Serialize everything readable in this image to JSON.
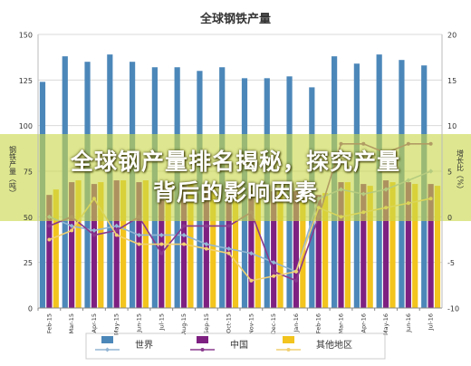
{
  "colors": {
    "world_bar": "#4c87b9",
    "china_bar": "#7e2082",
    "other_bar": "#f2c41d",
    "world_line": "#93b6d4",
    "china_line": "#8a3a8e",
    "other_line": "#f1d072",
    "overlay": "#c9d94a"
  },
  "overlay_banner": {
    "line1": "全球钢产量排名揭秘，探究产量",
    "line2": "背后的影响因素"
  },
  "chart_data": {
    "type": "bar",
    "title": "全球钢铁产量",
    "ylabel_left": "钢铁产量（吨）",
    "ylabel_right": "增长比（%）",
    "ylim_left": [
      0,
      150
    ],
    "ylim_right": [
      -10,
      20
    ],
    "left_ticks": [
      0,
      25,
      50,
      75,
      100,
      125,
      150
    ],
    "right_ticks": [
      -10,
      -5,
      0,
      5,
      10,
      15,
      20
    ],
    "categories": [
      "Feb-15",
      "Mar-15",
      "Apr-15",
      "May-15",
      "Jun-15",
      "Jul-15",
      "Aug-15",
      "Sep-15",
      "Oct-15",
      "Nov-15",
      "Dec-15",
      "Jan-16",
      "Feb-16",
      "Mar-16",
      "Apr-16",
      "May-16",
      "Jun-16",
      "Jul-16"
    ],
    "bar_series": [
      {
        "name": "世界",
        "values": [
          124,
          138,
          135,
          139,
          135,
          132,
          132,
          130,
          132,
          126,
          126,
          127,
          121,
          138,
          134,
          139,
          136,
          133
        ]
      },
      {
        "name": "中国",
        "values": [
          62,
          69,
          68,
          70,
          69,
          67,
          67,
          66,
          67,
          64,
          64,
          64,
          62,
          69,
          68,
          70,
          69,
          68
        ]
      },
      {
        "name": "其他地区",
        "values": [
          65,
          70,
          69,
          70,
          70,
          68,
          68,
          67,
          68,
          65,
          65,
          66,
          63,
          69,
          67,
          69,
          68,
          67
        ]
      }
    ],
    "line_series": [
      {
        "name": "世界",
        "values": [
          0,
          -1,
          -1.5,
          -1,
          -2,
          -2,
          -2,
          -3,
          -3.5,
          -4,
          -5,
          -6,
          2,
          3,
          2.5,
          3,
          4,
          5
        ]
      },
      {
        "name": "中国",
        "values": [
          -1,
          0,
          -2,
          -1.5,
          0,
          -4,
          -1,
          -1,
          -1,
          0.5,
          -6,
          -7,
          0,
          8,
          8,
          7,
          8,
          8
        ]
      },
      {
        "name": "其他地区",
        "values": [
          -2.5,
          -1.5,
          2,
          -2,
          -3,
          -3,
          -3,
          -3.5,
          -4,
          -7,
          -6.5,
          -6,
          1,
          0,
          0.5,
          1,
          1.5,
          2
        ]
      }
    ],
    "legend": {
      "placement": "bottom",
      "items": [
        "世界",
        "中国",
        "其他地区"
      ]
    }
  }
}
